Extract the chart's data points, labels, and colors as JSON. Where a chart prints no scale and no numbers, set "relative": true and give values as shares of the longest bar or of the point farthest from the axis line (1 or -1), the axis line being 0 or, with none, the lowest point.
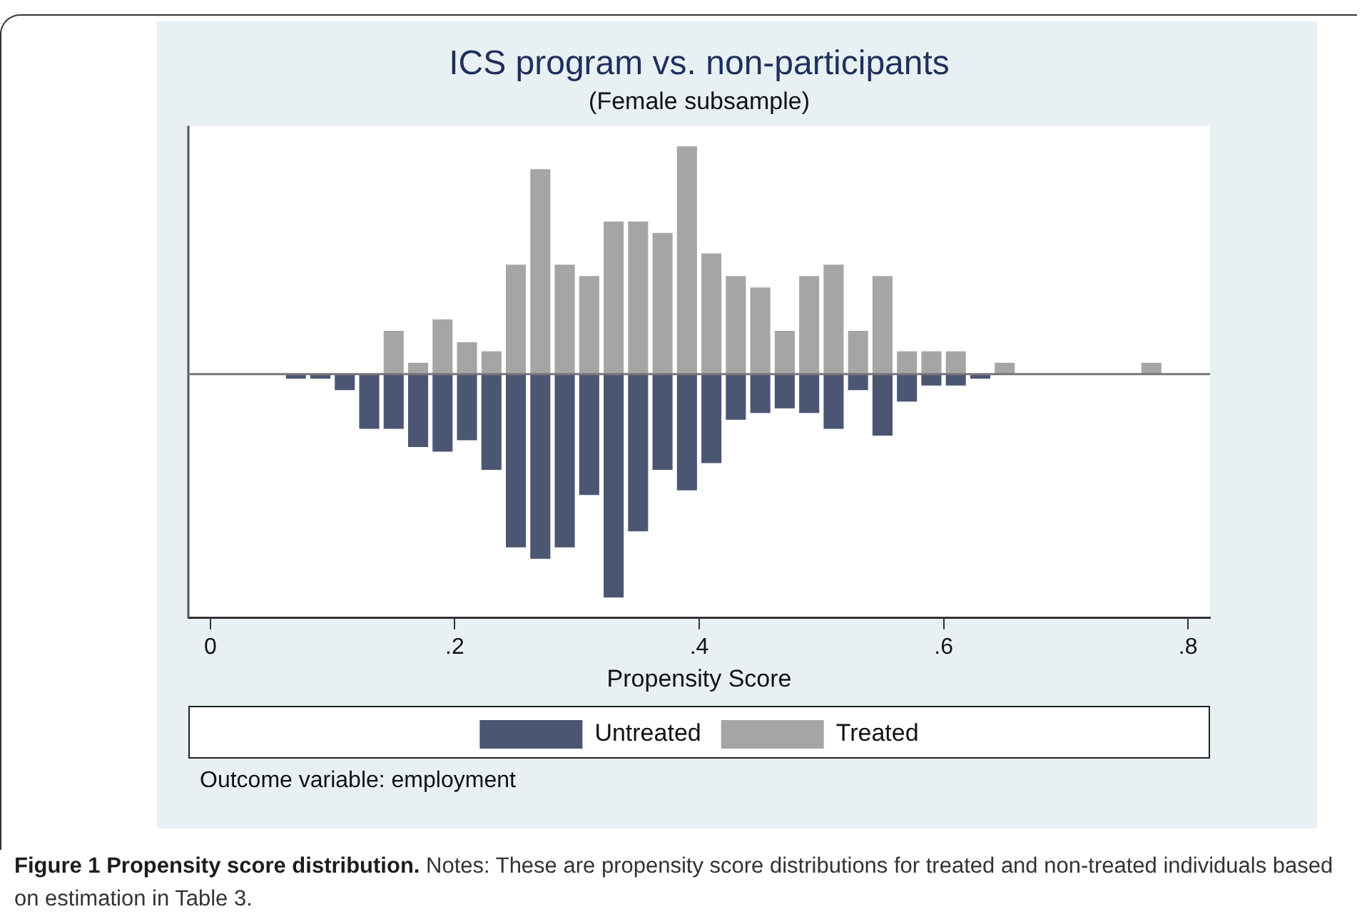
{
  "chart_data": {
    "type": "bar",
    "title": "ICS program vs. non-participants",
    "subtitle": "(Female subsample)",
    "xlabel": "Propensity Score",
    "relative": true,
    "xlim": [
      -0.018,
      0.818
    ],
    "xticks": [
      0,
      {
        "value": 0.2,
        "label": ".2"
      },
      {
        "value": 0.4,
        "label": ".4"
      },
      {
        "value": 0.6,
        "label": ".6"
      },
      {
        "value": 0.8,
        "label": ".8"
      }
    ],
    "legend": "bottom",
    "grid": false,
    "series": [
      {
        "name": "Untreated",
        "color": "#4b5673",
        "x": [
          0.07,
          0.09,
          0.11,
          0.13,
          0.15,
          0.17,
          0.19,
          0.21,
          0.23,
          0.25,
          0.27,
          0.29,
          0.31,
          0.33,
          0.35,
          0.37,
          0.39,
          0.41,
          0.43,
          0.45,
          0.47,
          0.49,
          0.51,
          0.53,
          0.55,
          0.57,
          0.59,
          0.61,
          0.63
        ],
        "values": [
          -0.02,
          -0.02,
          -0.07,
          -0.24,
          -0.24,
          -0.32,
          -0.34,
          -0.29,
          -0.42,
          -0.76,
          -0.81,
          -0.76,
          -0.53,
          -0.98,
          -0.69,
          -0.42,
          -0.51,
          -0.39,
          -0.2,
          -0.17,
          -0.15,
          -0.17,
          -0.24,
          -0.07,
          -0.27,
          -0.12,
          -0.05,
          -0.05,
          -0.02
        ]
      },
      {
        "name": "Treated",
        "color": "#a5a5a5",
        "x": [
          0.15,
          0.17,
          0.19,
          0.21,
          0.23,
          0.25,
          0.27,
          0.29,
          0.31,
          0.33,
          0.35,
          0.37,
          0.39,
          0.41,
          0.43,
          0.45,
          0.47,
          0.49,
          0.51,
          0.53,
          0.55,
          0.57,
          0.59,
          0.61,
          0.65,
          0.77
        ],
        "values": [
          0.19,
          0.05,
          0.24,
          0.14,
          0.1,
          0.48,
          0.9,
          0.48,
          0.43,
          0.67,
          0.67,
          0.62,
          1,
          0.53,
          0.43,
          0.38,
          0.19,
          0.43,
          0.48,
          0.19,
          0.43,
          0.1,
          0.1,
          0.1,
          0.05,
          0.05
        ]
      }
    ],
    "annotations": [
      "Outcome variable: employment",
      "Figure 1 Propensity score distribution.",
      "Notes: These are propensity score distributions for treated and non-treated individuals based on estimation in Table 3."
    ]
  }
}
